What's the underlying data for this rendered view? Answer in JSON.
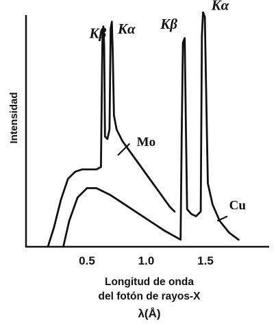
{
  "chart_data": {
    "type": "line",
    "title": "",
    "xlabel_lines": [
      "Longitud de onda",
      "del fotón de rayos-X"
    ],
    "xlabel_unit": "λ(Å)",
    "ylabel": "Intensidad",
    "xlim": [
      0,
      2.0
    ],
    "ylim": [
      0,
      1.0
    ],
    "x_ticks": [
      {
        "value": 0.5,
        "label": "0.5"
      },
      {
        "value": 1.0,
        "label": "1.0"
      },
      {
        "value": 1.5,
        "label": "1.5"
      }
    ],
    "grid": false,
    "series": [
      {
        "name": "Mo",
        "points": [
          [
            0.17,
            0.0
          ],
          [
            0.22,
            0.08
          ],
          [
            0.28,
            0.2
          ],
          [
            0.34,
            0.29
          ],
          [
            0.4,
            0.32
          ],
          [
            0.46,
            0.33
          ],
          [
            0.52,
            0.33
          ],
          [
            0.58,
            0.33
          ],
          [
            0.618,
            0.34
          ],
          [
            0.628,
            0.78
          ],
          [
            0.632,
            0.92
          ],
          [
            0.638,
            0.94
          ],
          [
            0.645,
            0.86
          ],
          [
            0.652,
            0.47
          ],
          [
            0.672,
            0.46
          ],
          [
            0.69,
            0.5
          ],
          [
            0.7,
            0.93
          ],
          [
            0.71,
            0.96
          ],
          [
            0.718,
            0.82
          ],
          [
            0.728,
            0.56
          ],
          [
            0.75,
            0.5
          ],
          [
            0.8,
            0.45
          ],
          [
            0.9,
            0.38
          ],
          [
            1.0,
            0.31
          ],
          [
            1.1,
            0.24
          ],
          [
            1.2,
            0.17
          ],
          [
            1.24,
            0.15
          ]
        ]
      },
      {
        "name": "Cu",
        "points": [
          [
            0.3,
            0.0
          ],
          [
            0.35,
            0.11
          ],
          [
            0.42,
            0.21
          ],
          [
            0.5,
            0.25
          ],
          [
            0.58,
            0.25
          ],
          [
            0.7,
            0.22
          ],
          [
            0.85,
            0.17
          ],
          [
            1.0,
            0.12
          ],
          [
            1.15,
            0.07
          ],
          [
            1.29,
            0.03
          ],
          [
            1.3,
            0.5
          ],
          [
            1.31,
            0.87
          ],
          [
            1.325,
            0.89
          ],
          [
            1.335,
            0.5
          ],
          [
            1.345,
            0.16
          ],
          [
            1.38,
            0.14
          ],
          [
            1.42,
            0.13
          ],
          [
            1.46,
            0.15
          ],
          [
            1.47,
            0.9
          ],
          [
            1.48,
            1.0
          ],
          [
            1.495,
            0.98
          ],
          [
            1.51,
            0.55
          ],
          [
            1.52,
            0.27
          ],
          [
            1.56,
            0.18
          ],
          [
            1.62,
            0.11
          ],
          [
            1.7,
            0.06
          ],
          [
            1.78,
            0.03
          ]
        ]
      }
    ],
    "annotations": [
      {
        "text": "Kβ",
        "series": "Mo",
        "x": 0.52,
        "y": 0.89
      },
      {
        "text": "Kα",
        "series": "Mo",
        "x": 0.76,
        "y": 0.91
      },
      {
        "text": "Mo",
        "series": "Mo",
        "x": 0.92,
        "y": 0.43
      },
      {
        "text": "Kβ",
        "series": "Cu",
        "x": 1.12,
        "y": 0.93
      },
      {
        "text": "Kα",
        "series": "Cu",
        "x": 1.55,
        "y": 1.01
      },
      {
        "text": "Cu",
        "series": "Cu",
        "x": 1.7,
        "y": 0.16
      }
    ]
  }
}
